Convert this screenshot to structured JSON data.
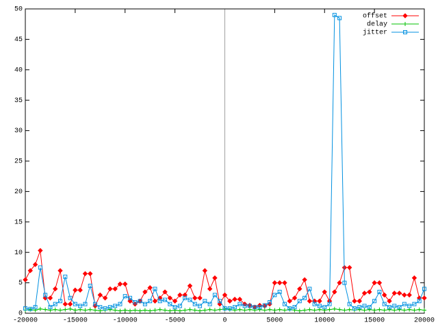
{
  "chart_data": {
    "type": "line",
    "x": [
      -20000,
      -19500,
      -19000,
      -18500,
      -18000,
      -17500,
      -17000,
      -16500,
      -16000,
      -15500,
      -15000,
      -14500,
      -14000,
      -13500,
      -13000,
      -12500,
      -12000,
      -11500,
      -11000,
      -10500,
      -10000,
      -9500,
      -9000,
      -8500,
      -8000,
      -7500,
      -7000,
      -6500,
      -6000,
      -5500,
      -5000,
      -4500,
      -4000,
      -3500,
      -3000,
      -2500,
      -2000,
      -1500,
      -1000,
      -500,
      0,
      500,
      1000,
      1500,
      2000,
      2500,
      3000,
      3500,
      4000,
      4500,
      5000,
      5500,
      6000,
      6500,
      7000,
      7500,
      8000,
      8500,
      9000,
      9500,
      10000,
      10500,
      11000,
      11500,
      12000,
      12500,
      13000,
      13500,
      14000,
      14500,
      15000,
      15500,
      16000,
      16500,
      17000,
      17500,
      18000,
      18500,
      19000,
      19500,
      20000
    ],
    "series": [
      {
        "name": "offset",
        "color": "#ff0000",
        "marker": "diamond",
        "values": [
          5.5,
          7,
          8,
          10.3,
          2.5,
          2.5,
          4,
          7,
          1.5,
          1.5,
          3.8,
          3.8,
          6.5,
          6.5,
          1.2,
          3,
          2.5,
          4,
          4,
          4.8,
          4.8,
          2,
          1.5,
          2,
          3.5,
          4.2,
          2,
          2.5,
          3.5,
          2.5,
          2,
          3,
          3,
          4.5,
          2.5,
          2.5,
          7,
          4,
          5.8,
          1.5,
          3,
          2,
          2.3,
          2.3,
          1.5,
          1.3,
          1,
          1.3,
          1.2,
          1.5,
          5,
          5,
          5,
          2,
          2.5,
          4,
          5.5,
          2,
          2,
          2,
          3.5,
          2,
          3.5,
          5,
          7.5,
          7.5,
          2,
          2,
          3.3,
          3.5,
          5,
          5,
          3,
          2,
          3.3,
          3.3,
          3,
          3,
          5.8,
          2.5,
          2.5
        ]
      },
      {
        "name": "delay",
        "color": "#00c000",
        "marker": "plus",
        "values": [
          0.5,
          0.6,
          0.5,
          0.7,
          0.6,
          0.5,
          0.6,
          0.5,
          0.6,
          0.7,
          0.5,
          0.6,
          0.5,
          0.6,
          0.5,
          0.4,
          0.5,
          0.6,
          0.5,
          0.4,
          0.5,
          0.4,
          0.5,
          0.4,
          0.5,
          0.4,
          0.5,
          0.6,
          0.5,
          0.4,
          0.5,
          0.4,
          0.5,
          0.6,
          0.5,
          0.4,
          0.5,
          0.6,
          0.5,
          0.6,
          0.7,
          0.6,
          0.5,
          0.6,
          0.5,
          0.6,
          0.5,
          0.6,
          0.5,
          0.6,
          0.5,
          0.6,
          0.5,
          0.6,
          0.5,
          0.4,
          0.5,
          0.6,
          0.5,
          0.6,
          0.5,
          0.6,
          0.7,
          0.6,
          0.5,
          0.6,
          0.5,
          0.6,
          0.5,
          0.6,
          0.5,
          0.6,
          0.5,
          0.6,
          0.5,
          0.6,
          0.5,
          0.6,
          0.5,
          0.6,
          0.5
        ]
      },
      {
        "name": "jitter",
        "color": "#0090e0",
        "marker": "square",
        "values": [
          0.8,
          0.7,
          1,
          7.5,
          3,
          1,
          1.5,
          2,
          6,
          2.5,
          1.5,
          1.2,
          1.5,
          4.5,
          1.5,
          1,
          0.8,
          1,
          1.2,
          1.5,
          2.8,
          2.5,
          1.8,
          2,
          1.5,
          2,
          4,
          2,
          2.2,
          1.5,
          1,
          1.2,
          2.5,
          2.2,
          1.5,
          1.2,
          2,
          1.5,
          3,
          2,
          0.8,
          0.8,
          1,
          1.5,
          1.2,
          1.2,
          1,
          1,
          1.3,
          1.8,
          3,
          3.5,
          1.5,
          0.8,
          1,
          2,
          2.5,
          4,
          1.5,
          1.2,
          1,
          1.5,
          49,
          48.5,
          5,
          1.5,
          0.8,
          1,
          1.2,
          1,
          2,
          3.5,
          1.5,
          1,
          1.2,
          1,
          1.5,
          1.2,
          1.5,
          2,
          4
        ]
      }
    ],
    "xlim": [
      -20000,
      20000
    ],
    "ylim": [
      0,
      50
    ],
    "xticks": [
      -20000,
      -15000,
      -10000,
      -5000,
      0,
      5000,
      10000,
      15000,
      20000
    ],
    "yticks": [
      0,
      5,
      10,
      15,
      20,
      25,
      30,
      35,
      40,
      45,
      50
    ],
    "zero_axis": true,
    "legend": "top-right"
  }
}
